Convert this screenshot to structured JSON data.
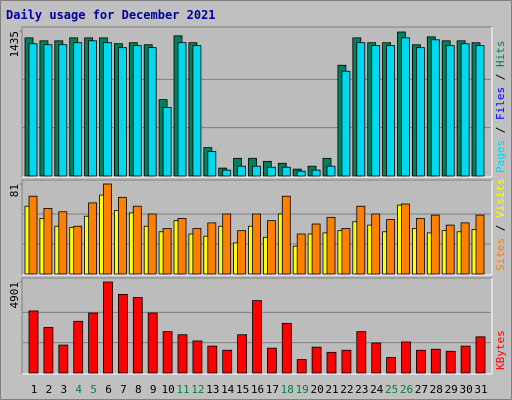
{
  "chart_data": [
    {
      "type": "bar",
      "title": "Daily usage for December 2021",
      "legend": [
        {
          "name": "Pages",
          "color": "#00d8f0"
        },
        {
          "name": "Files",
          "color": "#0000ff"
        },
        {
          "name": "Hits",
          "color": "#00805c"
        }
      ],
      "separator": " / ",
      "series": [
        {
          "color": "#00805c",
          "values": [
            1367,
            1338,
            1338,
            1367,
            1367,
            1367,
            1309,
            1319,
            1299,
            756,
            1387,
            1319,
            281,
            78,
            175,
            175,
            145,
            126,
            68,
            97,
            175,
            1096,
            1367,
            1319,
            1319,
            1425,
            1299,
            1377,
            1338,
            1338,
            1319
          ]
        },
        {
          "color": "#00d8f0",
          "values": [
            1309,
            1299,
            1299,
            1319,
            1338,
            1319,
            1270,
            1290,
            1270,
            679,
            1319,
            1290,
            242,
            58,
            97,
            97,
            87,
            87,
            48,
            58,
            97,
            1037,
            1319,
            1290,
            1290,
            1367,
            1270,
            1348,
            1290,
            1309,
            1290
          ]
        }
      ],
      "ylim": [
        0,
        1435
      ],
      "yticks": [
        1435
      ],
      "grid": true
    },
    {
      "type": "bar",
      "legend": [
        {
          "name": "Sites",
          "color": "#ff8000"
        },
        {
          "name": "Visits",
          "color": "#ffff00"
        }
      ],
      "separator": " / ",
      "series": [
        {
          "color": "#ffff00",
          "values": [
            61,
            50,
            43,
            42,
            52,
            71,
            57,
            55,
            43,
            38,
            48,
            36,
            34,
            43,
            28,
            43,
            33,
            54,
            25,
            36,
            37,
            39,
            47,
            44,
            38,
            62,
            41,
            37,
            39,
            38,
            40
          ]
        },
        {
          "color": "#ff8000",
          "values": [
            70,
            59,
            56,
            43,
            64,
            81,
            69,
            61,
            54,
            41,
            50,
            41,
            46,
            54,
            39,
            54,
            48,
            70,
            36,
            45,
            51,
            41,
            61,
            54,
            49,
            63,
            50,
            53,
            44,
            46,
            53
          ]
        }
      ],
      "ylim": [
        0,
        81
      ],
      "yticks": [
        81
      ],
      "grid": true
    },
    {
      "type": "bar",
      "legend": [
        {
          "name": "KBytes",
          "color": "#ff0000"
        }
      ],
      "series": [
        {
          "color": "#ff0000",
          "values": [
            3342,
            2451,
            1504,
            2785,
            3230,
            4901,
            4233,
            4066,
            3230,
            2228,
            2061,
            1727,
            1448,
            1225,
            2061,
            3899,
            1337,
            2673,
            724,
            1392,
            1114,
            1225,
            2228,
            1615,
            835,
            1671,
            1225,
            1281,
            1170,
            1448,
            1949
          ]
        }
      ],
      "ylim": [
        0,
        4901
      ],
      "yticks": [
        4901
      ],
      "grid": true,
      "categories": [
        "1",
        "2",
        "3",
        "4",
        "5",
        "6",
        "7",
        "8",
        "9",
        "10",
        "11",
        "12",
        "13",
        "14",
        "15",
        "16",
        "17",
        "18",
        "19",
        "20",
        "21",
        "22",
        "23",
        "24",
        "25",
        "26",
        "27",
        "28",
        "29",
        "30",
        "31"
      ],
      "category_colors": [
        "#000",
        "#000",
        "#000",
        "#008040",
        "#008040",
        "#000",
        "#000",
        "#000",
        "#000",
        "#000",
        "#008040",
        "#008040",
        "#000",
        "#000",
        "#000",
        "#000",
        "#000",
        "#008040",
        "#008040",
        "#000",
        "#000",
        "#000",
        "#000",
        "#000",
        "#008040",
        "#008040",
        "#000",
        "#000",
        "#000",
        "#000",
        "#000"
      ]
    }
  ]
}
